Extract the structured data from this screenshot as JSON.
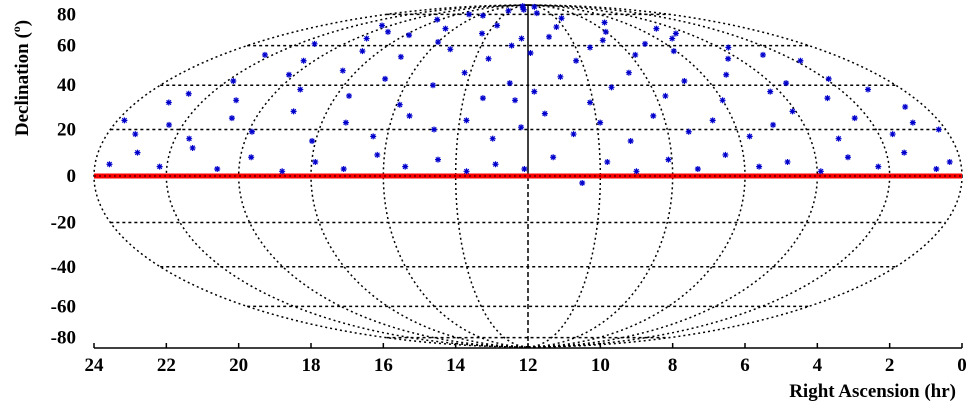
{
  "chart_data": {
    "type": "scatter",
    "projection": "mollweide",
    "xlabel": "Right Ascension (hr)",
    "ylabel_main": "Declination (",
    "ylabel_sup": "o",
    "ylabel_end": ")",
    "xlim": [
      24,
      0
    ],
    "ylim": [
      -90,
      90
    ],
    "x_ticks": [
      24,
      22,
      20,
      18,
      16,
      14,
      12,
      10,
      8,
      6,
      4,
      2,
      0
    ],
    "y_ticks": [
      80,
      60,
      40,
      20,
      0,
      -20,
      -40,
      -60,
      -80
    ],
    "x_tick_labels": [
      "24",
      "22",
      "20",
      "18",
      "16",
      "14",
      "12",
      "10",
      "8",
      "6",
      "4",
      "2",
      "0"
    ],
    "y_tick_labels": [
      "80",
      "60",
      "40",
      "20",
      "0",
      "-20",
      "-40",
      "-60",
      "-80"
    ],
    "meridians_hr": [
      2,
      4,
      6,
      8,
      10,
      14,
      16,
      18,
      20,
      22
    ],
    "central_meridian_hr": 12,
    "parallels_deg": [
      -80,
      -60,
      -40,
      -20,
      20,
      40,
      60,
      80
    ],
    "equator_highlight_deg": 0,
    "grid": true,
    "colors": {
      "points": "#0000cc",
      "grid": "#000000",
      "equator": "#ff0000"
    },
    "series": [
      {
        "marker": "star",
        "points": [
          [
            23.6,
            5
          ],
          [
            22.9,
            10
          ],
          [
            22.2,
            4
          ],
          [
            21.4,
            12
          ],
          [
            20.6,
            3
          ],
          [
            19.7,
            8
          ],
          [
            18.8,
            2
          ],
          [
            17.9,
            6
          ],
          [
            17.1,
            3
          ],
          [
            16.2,
            9
          ],
          [
            15.4,
            4
          ],
          [
            14.5,
            7
          ],
          [
            13.7,
            2
          ],
          [
            12.9,
            5
          ],
          [
            12.1,
            3
          ],
          [
            11.3,
            8
          ],
          [
            10.5,
            -3
          ],
          [
            9.8,
            6
          ],
          [
            9.0,
            2
          ],
          [
            8.1,
            7
          ],
          [
            7.3,
            3
          ],
          [
            6.5,
            9
          ],
          [
            5.6,
            4
          ],
          [
            4.8,
            6
          ],
          [
            3.9,
            2
          ],
          [
            3.1,
            8
          ],
          [
            2.3,
            4
          ],
          [
            1.5,
            10
          ],
          [
            0.7,
            3
          ],
          [
            0.3,
            6
          ],
          [
            23.2,
            18
          ],
          [
            22.4,
            22
          ],
          [
            21.6,
            16
          ],
          [
            20.7,
            25
          ],
          [
            19.9,
            19
          ],
          [
            19.0,
            28
          ],
          [
            18.1,
            15
          ],
          [
            17.3,
            23
          ],
          [
            16.4,
            17
          ],
          [
            15.5,
            26
          ],
          [
            14.7,
            20
          ],
          [
            13.8,
            24
          ],
          [
            13.0,
            16
          ],
          [
            12.2,
            21
          ],
          [
            11.5,
            27
          ],
          [
            10.7,
            18
          ],
          [
            9.9,
            23
          ],
          [
            9.1,
            15
          ],
          [
            8.3,
            26
          ],
          [
            7.4,
            19
          ],
          [
            6.6,
            24
          ],
          [
            5.7,
            17
          ],
          [
            4.9,
            22
          ],
          [
            4.1,
            28
          ],
          [
            3.2,
            16
          ],
          [
            2.4,
            25
          ],
          [
            1.6,
            18
          ],
          [
            0.8,
            23
          ],
          [
            23.8,
            24
          ],
          [
            0.2,
            20
          ],
          [
            22.7,
            36
          ],
          [
            21.8,
            42
          ],
          [
            21.0,
            33
          ],
          [
            20.2,
            45
          ],
          [
            19.3,
            38
          ],
          [
            18.5,
            47
          ],
          [
            17.6,
            35
          ],
          [
            16.8,
            43
          ],
          [
            15.9,
            31
          ],
          [
            15.1,
            40
          ],
          [
            14.2,
            46
          ],
          [
            13.4,
            34
          ],
          [
            12.6,
            41
          ],
          [
            11.8,
            37
          ],
          [
            10.9,
            44
          ],
          [
            10.1,
            32
          ],
          [
            9.3,
            39
          ],
          [
            8.5,
            46
          ],
          [
            7.7,
            35
          ],
          [
            6.8,
            42
          ],
          [
            6.0,
            33
          ],
          [
            5.2,
            45
          ],
          [
            4.3,
            37
          ],
          [
            3.5,
            41
          ],
          [
            2.7,
            34
          ],
          [
            1.9,
            43
          ],
          [
            1.1,
            38
          ],
          [
            23.0,
            32
          ],
          [
            0.6,
            30
          ],
          [
            12.4,
            33
          ],
          [
            22.3,
            55
          ],
          [
            21.3,
            61
          ],
          [
            20.4,
            52
          ],
          [
            19.5,
            64
          ],
          [
            18.7,
            57
          ],
          [
            17.8,
            66
          ],
          [
            16.9,
            54
          ],
          [
            16.0,
            62
          ],
          [
            15.2,
            58
          ],
          [
            14.3,
            67
          ],
          [
            13.5,
            53
          ],
          [
            12.7,
            60
          ],
          [
            11.9,
            56
          ],
          [
            11.0,
            65
          ],
          [
            10.2,
            52
          ],
          [
            9.4,
            59
          ],
          [
            8.6,
            63
          ],
          [
            7.8,
            55
          ],
          [
            6.9,
            61
          ],
          [
            6.1,
            57
          ],
          [
            5.3,
            64
          ],
          [
            4.4,
            53
          ],
          [
            3.6,
            59
          ],
          [
            2.8,
            55
          ],
          [
            1.8,
            52
          ],
          [
            12.3,
            64
          ],
          [
            16.5,
            70
          ],
          [
            8.0,
            68
          ],
          [
            13.8,
            72
          ],
          [
            10.4,
            71
          ],
          [
            20.5,
            72
          ],
          [
            18.2,
            76
          ],
          [
            15.6,
            79
          ],
          [
            14.1,
            83
          ],
          [
            12.8,
            86
          ],
          [
            11.2,
            81
          ],
          [
            9.6,
            77
          ],
          [
            7.2,
            74
          ],
          [
            5.0,
            70
          ],
          [
            17.0,
            80
          ],
          [
            13.3,
            88
          ],
          [
            12.5,
            84
          ],
          [
            10.8,
            87
          ],
          [
            19.2,
            68
          ],
          [
            4.6,
            67
          ]
        ]
      }
    ]
  }
}
